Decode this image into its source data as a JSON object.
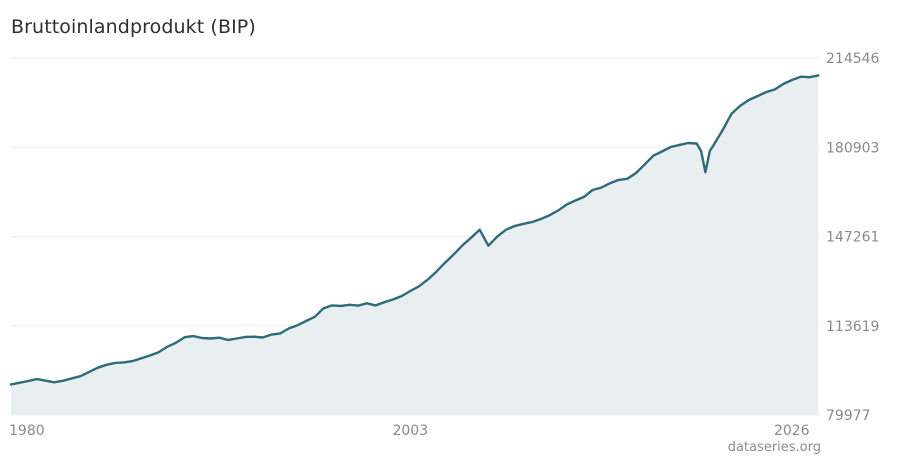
{
  "page": {
    "title": "Bruttoinlandprodukt (BIP)",
    "credit": "dataseries.org"
  },
  "chart_data": {
    "type": "area",
    "title": "Bruttoinlandprodukt (BIP)",
    "xlabel": "",
    "ylabel": "",
    "x_ticks": [
      "1980",
      "2003",
      "2026"
    ],
    "y_ticks": [
      79977,
      113619,
      147261,
      180903,
      214546
    ],
    "xlim": [
      1980.0,
      2026.6
    ],
    "ylim": [
      79977,
      214546
    ],
    "grid": true,
    "legend": "none",
    "colors": {
      "line": "#2f6b78",
      "area": "#e9eef1",
      "grid": "#efefef"
    },
    "series": [
      {
        "x": [
          1980.0,
          1981.0,
          1981.5,
          1982.0,
          1982.5,
          1983.0,
          1984.0,
          1985.0,
          1985.5,
          1986.0,
          1986.5,
          1987.0,
          1988.0,
          1988.5,
          1989.0,
          1989.5,
          1990.0,
          1990.5,
          1991.0,
          1991.5,
          1992.0,
          1992.5,
          1993.0,
          1993.5,
          1994.0,
          1994.5,
          1995.0,
          1995.5,
          1996.0,
          1996.5,
          1997.0,
          1997.5,
          1998.0,
          1998.5,
          1999.0,
          1999.5,
          2000.0,
          2000.5,
          2001.0,
          2001.5,
          2002.0,
          2002.5,
          2003.0,
          2003.5,
          2004.0,
          2004.5,
          2005.0,
          2005.5,
          2006.0,
          2006.5,
          2007.0,
          2007.5,
          2008.0,
          2008.5,
          2009.0,
          2009.5,
          2010.0,
          2010.5,
          2011.0,
          2011.5,
          2012.0,
          2012.5,
          2013.0,
          2013.5,
          2014.0,
          2014.5,
          2015.0,
          2015.5,
          2016.0,
          2016.5,
          2017.0,
          2017.5,
          2018.0,
          2018.5,
          2019.0,
          2019.5,
          2019.75,
          2020.0,
          2020.25,
          2020.5,
          2021.0,
          2021.5,
          2022.0,
          2022.5,
          2023.0,
          2023.5,
          2024.0,
          2024.5,
          2025.0,
          2025.5,
          2026.0,
          2026.5
        ],
        "values": [
          91500,
          92800,
          93500,
          92900,
          92300,
          92900,
          94600,
          97800,
          98900,
          99600,
          99800,
          100300,
          102400,
          103600,
          105700,
          107200,
          109300,
          109700,
          109000,
          108800,
          109100,
          108300,
          108800,
          109400,
          109500,
          109200,
          110300,
          110700,
          112600,
          113800,
          115400,
          117000,
          120200,
          121300,
          121100,
          121500,
          121200,
          122100,
          121300,
          122500,
          123500,
          124800,
          126700,
          128500,
          131000,
          134000,
          137400,
          140500,
          143900,
          146800,
          149800,
          143800,
          147200,
          149800,
          151200,
          152000,
          152700,
          153800,
          155200,
          157000,
          159300,
          160800,
          162200,
          164800,
          165700,
          167300,
          168600,
          169000,
          171200,
          174400,
          177700,
          179300,
          181000,
          181800,
          182500,
          182300,
          179500,
          171500,
          179500,
          182000,
          187500,
          193500,
          196500,
          198700,
          200200,
          201700,
          202700,
          204800,
          206300,
          207500,
          207300,
          208000
        ]
      }
    ]
  }
}
